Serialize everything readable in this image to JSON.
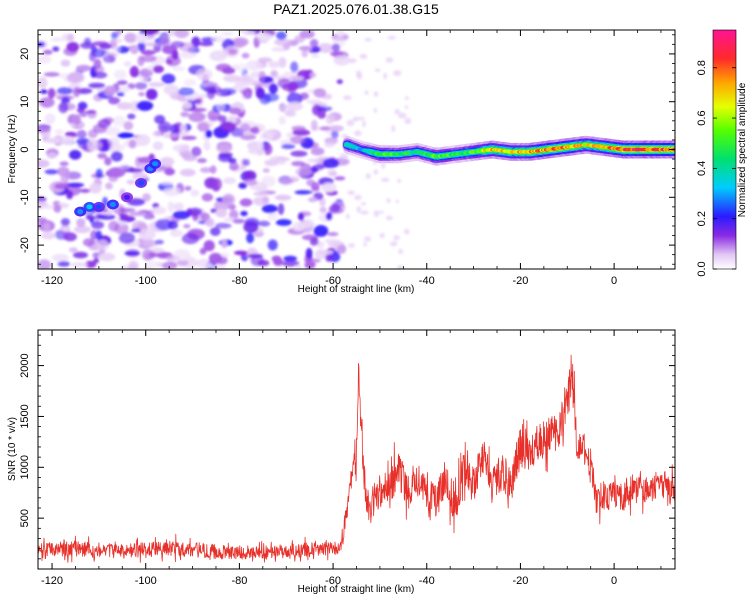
{
  "figure": {
    "title": "PAZ1.2025.076.01.38.G15"
  },
  "chart_data": [
    {
      "type": "heatmap",
      "name": "spectrogram",
      "xlabel": "Height of straight line (km)",
      "ylabel": "Frequency (Hz)",
      "xlim": [
        -123,
        13
      ],
      "ylim": [
        -25,
        25
      ],
      "xticks": [
        -120,
        -100,
        -80,
        -60,
        -40,
        -20,
        0
      ],
      "yticks": [
        -20,
        -10,
        0,
        10,
        20
      ],
      "colorbar": {
        "label": "Normalized spectral amplitude",
        "range": [
          0,
          0.95
        ],
        "ticks": [
          0.0,
          0.2,
          0.4,
          0.6,
          0.8
        ]
      },
      "noise_region_x": [
        -123,
        -58
      ],
      "signal_ridge": {
        "x": [
          -57,
          -54,
          -50,
          -46,
          -42,
          -38,
          -34,
          -30,
          -26,
          -22,
          -18,
          -14,
          -10,
          -6,
          -2,
          2,
          6,
          10,
          13
        ],
        "y": [
          1,
          0,
          -1,
          -1,
          -0.5,
          -1.5,
          -1,
          -0.5,
          0,
          -0.5,
          -0.5,
          0,
          0.5,
          1,
          0.5,
          0,
          0,
          0,
          0
        ],
        "amplitude": [
          0.45,
          0.3,
          0.55,
          0.5,
          0.45,
          0.55,
          0.5,
          0.55,
          0.75,
          0.7,
          0.75,
          0.8,
          0.8,
          0.7,
          0.75,
          0.9,
          0.9,
          0.85,
          0.85
        ]
      },
      "noise_track": {
        "x": [
          -114,
          -112,
          -110,
          -107,
          -104,
          -101,
          -99,
          -98
        ],
        "y": [
          -13,
          -12,
          -12,
          -11.5,
          -10,
          -7,
          -4,
          -3
        ],
        "amplitude": [
          0.3,
          0.35,
          0.25,
          0.3,
          0.2,
          0.25,
          0.3,
          0.3
        ]
      },
      "grid": false
    },
    {
      "type": "line",
      "name": "snr",
      "xlabel": "Height of straight line (km)",
      "ylabel": "SNR (10 * v/v)",
      "xlim": [
        -123,
        13
      ],
      "ylim": [
        0,
        2350
      ],
      "xticks": [
        -120,
        -100,
        -80,
        -60,
        -40,
        -20,
        0
      ],
      "yticks": [
        500,
        1000,
        1500,
        2000
      ],
      "color": "#e8302a",
      "envelope": {
        "x": [
          -123,
          -115,
          -105,
          -95,
          -85,
          -75,
          -65,
          -59,
          -58,
          -57,
          -56,
          -55,
          -54.5,
          -54,
          -53,
          -52,
          -50,
          -48,
          -46,
          -44,
          -42,
          -40,
          -38,
          -36,
          -34,
          -32,
          -30,
          -28,
          -26,
          -24,
          -22,
          -20,
          -18,
          -16,
          -14,
          -12,
          -10,
          -9,
          -8,
          -7,
          -6,
          -5,
          -4,
          -3,
          -2,
          0,
          2,
          4,
          6,
          8,
          10,
          12,
          13
        ],
        "y": [
          180,
          200,
          170,
          210,
          170,
          160,
          190,
          200,
          300,
          600,
          900,
          1150,
          1900,
          1300,
          700,
          650,
          750,
          800,
          1000,
          750,
          950,
          750,
          650,
          900,
          600,
          1000,
          800,
          1100,
          800,
          950,
          850,
          1200,
          1100,
          1250,
          1300,
          1350,
          1650,
          1900,
          1300,
          1200,
          1150,
          1050,
          700,
          650,
          700,
          750,
          700,
          800,
          750,
          800,
          850,
          800,
          800
        ],
        "noise_amplitude": [
          130,
          140,
          130,
          140,
          130,
          120,
          130,
          120,
          200,
          250,
          250,
          300,
          250,
          300,
          300,
          300,
          300,
          350,
          350,
          300,
          350,
          300,
          300,
          350,
          300,
          350,
          350,
          350,
          350,
          350,
          350,
          350,
          350,
          350,
          350,
          350,
          350,
          400,
          350,
          300,
          300,
          300,
          250,
          250,
          250,
          250,
          250,
          250,
          250,
          250,
          250,
          250,
          250
        ]
      }
    }
  ]
}
